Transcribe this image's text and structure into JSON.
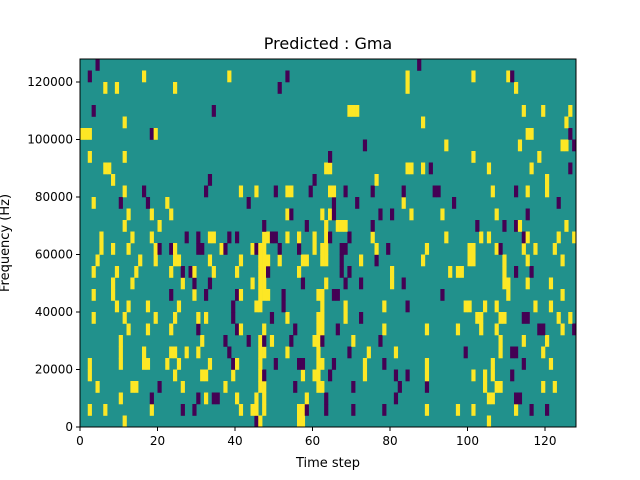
{
  "chart_data": {
    "type": "heatmap",
    "title": "Predicted : Gma",
    "xlabel": "Time step",
    "ylabel": "Frequency (Hz)",
    "xlim": [
      0,
      128
    ],
    "ylim": [
      0,
      128000
    ],
    "xticks": [
      "0",
      "20",
      "40",
      "60",
      "80",
      "100",
      "120"
    ],
    "xtick_values": [
      0,
      20,
      40,
      60,
      80,
      100,
      120
    ],
    "yticks": [
      "0",
      "20000",
      "40000",
      "60000",
      "80000",
      "100000",
      "120000"
    ],
    "ytick_values": [
      0,
      20000,
      40000,
      60000,
      80000,
      100000,
      120000
    ],
    "n_cols": 128,
    "bin_hz": 4000,
    "legend": {
      ".": "0.5 (teal)",
      "Y": "1 (yellow)",
      "P": "0 (purple)"
    },
    "colors": {
      ".": "#21918c",
      "Y": "#fde725",
      "P": "#440154"
    },
    "rows_note": "row 0 = lowest frequency bin; characters per time step",
    "rows": [
      "...........Y.................................PY.........YY...............................................Y......................",
      "..Y...Y...........Y.......P..P...........Y..YY.Y........YYP....P......P.......P..........Y.......Y...Y..........Y...P...P.........",
      "..........Y.......P...........P.Y.PP....Y....Y.Y..........Y....P.................P.......................YY.....PP...............",
      "....Y........YY.....P.....Y..........Y........YY.......P.....YY.......P...........P......P..............Y..YY..........Y..Y......Y",
      "..Y.....................Y......YY......Y......YP.........Y..YY..P........Y.......P..P....Y...........Y..Y.Y....P..................",
      "..Y.......Y.....YY....Y..Y.......Y.....PY.....Y...P.....PP...YY..P.......Y....P..........Y................Y.......P......Y.........",
      "..........Y.....Y......YY..Y..Y.......P.......YY.....Y.......Y.......P....Y......Y.................P........Y..PP......Y...........",
      "..........Y....................Y.....P.....P..YP.Y....P.....YYP.......Y......P..............................Y.....Y.....Y.........Y",
      "............Y....Y.....Y......P.........PY.....Y.......P.....YY...P...........Y..........Y.......Y.....Y...Y..........PP....Y..PPP.",
      "...Y.......Y.......Y....Y.....Y.Y......P.........P...Y.......YY.....Y...P.............................YY....YY....PP.......Y..Y...",
      ".........Y..Y....Y.......Y.............P.....YY.....P.........Y.....Y.........Y.....P..............YY...Y..Y.........Y...Y.......",
      "...Y....Y..............P.....Y..P.......PY....YYY...P........YY..PP..........................P................Y.............Y....",
      "........Y....Y............Y..P...P..........Y.YY.........P.....Y....P...P.......Y..P.........................YY....Y.....Y.........",
      "...Y.....Y....Y........Y..P.PY....Y.....Y.....YYP.......Y..........P.P..........Y..............Y.YY..........Y..P...P..............",
      "....Y..........Y...Y....YY.......Y.......Y....YYY..Y.....YY...YY...P....Y...P...........Y...........YY.......Y.....Y........Y......P",
      ".....Y..Y...Y......YP..PY.....PP....YP......YPYY...P....P...Y.YY...PP.......Y..P.........Y..........YY.....YP.....Y..Y....Y.......P",
      ".....Y.......Y....Y........P..P..YY...P.P......YYPP..Y..Y...Y..YP....P.....Y..................Y........Y.Y........PY.......Y...Y..",
      "...........Y........Y..........................P..........P....Y..YYY......P..........................P......P..PY...........Y.....",
      "............Y.....Y....Y.............................YP.......Y.YP...........P..P....Y.......Y.............Y.......P.............Y.",
      "...Y......P......P....Y....................P.....................P.....P...........Y............P..........................P....Y..",
      "...........Y....P...............P........Y...Y....P..YY....P....YY..P......P.......P.......PP.............Y.....P..Y....Y.........",
      "........Y........................P..........................P...............Y...........................................Y.........",
      "......YY.......................................................YY...................YY..Y.P..............Y..........Y.........P...",
      "..Y........Y....................................................P....................................Y................Y..........",
      ".........................................................................P....................Y..................Y..........YY.P.P",
      "YYY...............PY...............................................................................................YY.........P..",
      "...........Y............................................................................Y....................................Y.",
      "...P..............................P..................................YYY..........................................Y....Y......Y.P",
      "......................................................................................................................................",
      "......Y..Y..............Y..........................P................................Y...........................Y.....................",
      "..P.............Y.....................Y..............P..............................Y................Y........YP.................",
      "....P..................................................................................P........................................."
    ]
  }
}
